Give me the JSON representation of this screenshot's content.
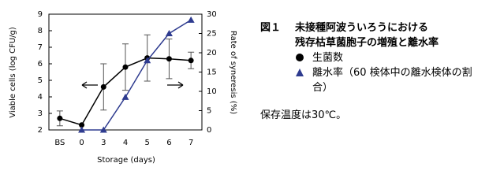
{
  "figure_label": "図１",
  "title": [
    "未接種阿波ういろうにおける",
    "残存枯草菌胞子の増殖と離水率"
  ],
  "note": "保存温度は30℃。",
  "chart_data": {
    "type": "line",
    "xlabel": "Storage (days)",
    "ylabel": "Viable cells (log CFU/g)",
    "y2label": "Rate of syneresis (%)",
    "categories": [
      "BS",
      "0",
      "3",
      "4",
      "5",
      "6",
      "7"
    ],
    "ylim": [
      2,
      9
    ],
    "yticks": [
      2,
      3,
      4,
      5,
      6,
      7,
      8,
      9
    ],
    "y2lim": [
      0,
      30
    ],
    "y2ticks": [
      0,
      5,
      10,
      15,
      20,
      25,
      30
    ],
    "series": [
      {
        "name": "生菌数",
        "color": "#000000",
        "marker": "circle",
        "values": [
          2.7,
          2.3,
          4.6,
          5.8,
          6.35,
          6.3,
          6.2
        ],
        "errors": [
          0.45,
          null,
          1.4,
          1.4,
          1.4,
          1.2,
          0.5
        ]
      },
      {
        "name": "離水率（60 検体中の離水検体の割合）",
        "color": "#2e3b8f",
        "marker": "triangle",
        "axis": "y2",
        "values": [
          null,
          0,
          0,
          8.5,
          18,
          25,
          28.5
        ]
      }
    ]
  }
}
